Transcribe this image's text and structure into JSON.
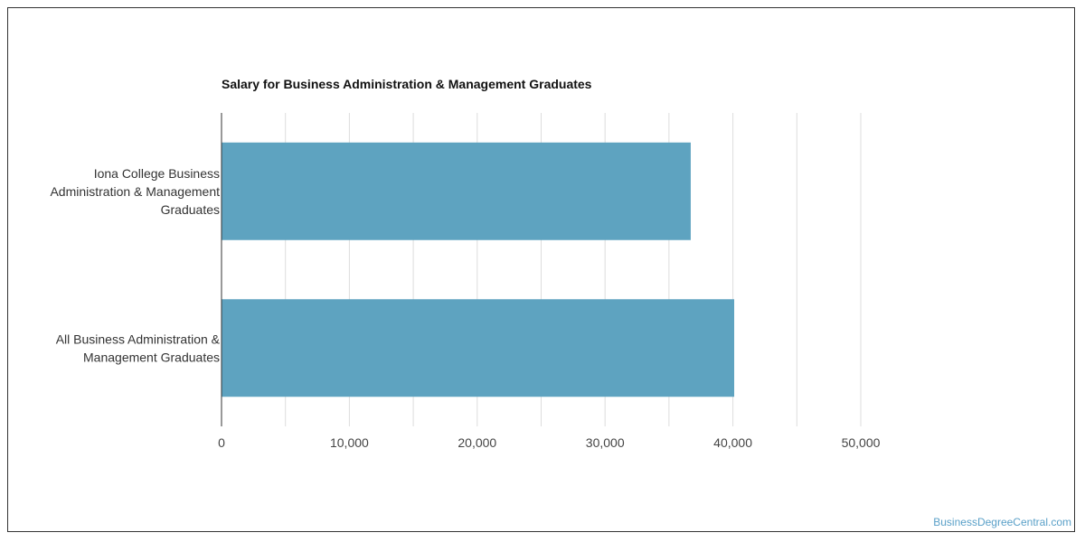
{
  "chart_data": {
    "type": "bar",
    "orientation": "horizontal",
    "title": "Salary for Business Administration & Management Graduates",
    "categories": [
      [
        "Iona College Business",
        "Administration & Management",
        "Graduates"
      ],
      [
        "All Business Administration &",
        "Management Graduates"
      ]
    ],
    "values": [
      36700,
      40100
    ],
    "xlim": [
      0,
      50000
    ],
    "ticks": [
      0,
      10000,
      20000,
      30000,
      40000,
      50000
    ],
    "tick_labels": [
      "0",
      "10,000",
      "20,000",
      "30,000",
      "40,000",
      "50,000"
    ],
    "grid": true,
    "bar_color": "#5ea3c0"
  },
  "credit": "BusinessDegreeCentral.com"
}
